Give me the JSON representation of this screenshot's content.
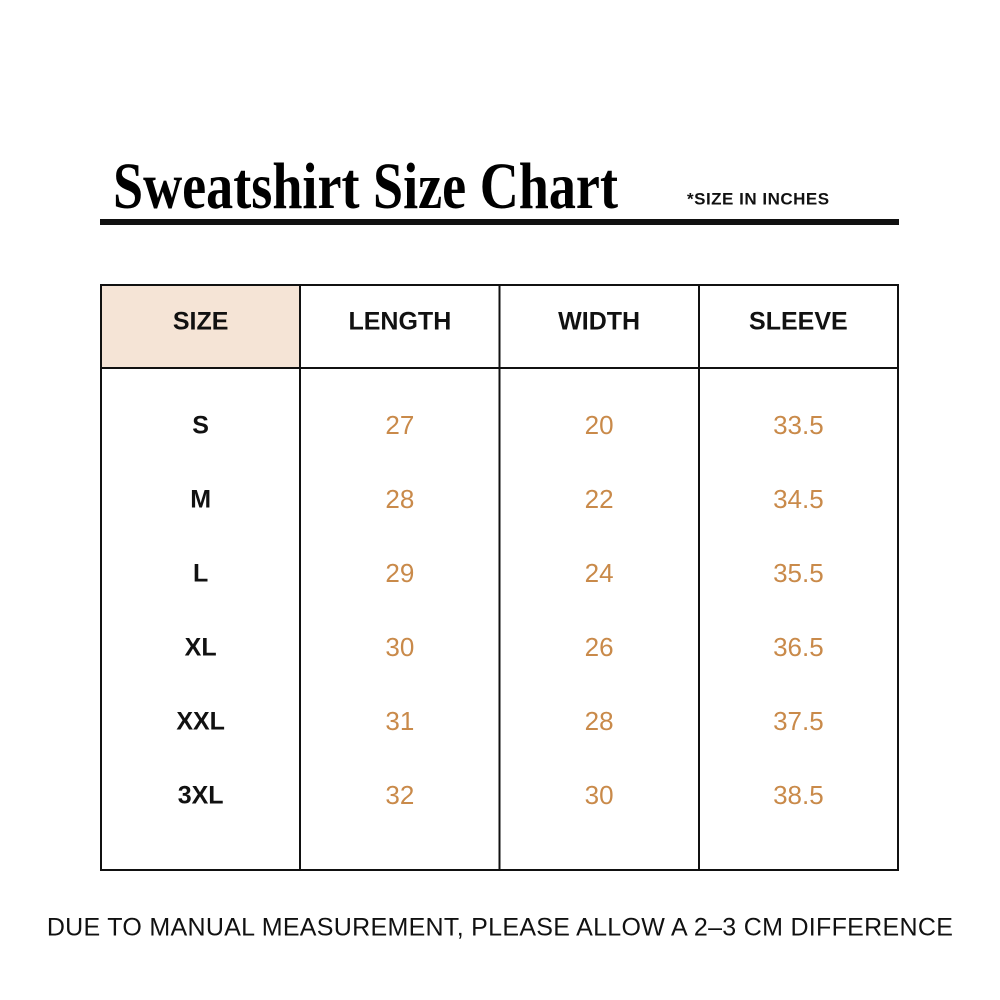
{
  "header": {
    "title": "Sweatshirt Size Chart",
    "note": "*SIZE IN INCHES"
  },
  "table": {
    "columns": [
      "SIZE",
      "LENGTH",
      "WIDTH",
      "SLEEVE"
    ],
    "rows": [
      [
        "S",
        27,
        20,
        33.5
      ],
      [
        "M",
        28,
        22,
        34.5
      ],
      [
        "L",
        29,
        24,
        35.5
      ],
      [
        "XL",
        30,
        26,
        36.5
      ],
      [
        "XXL",
        31,
        28,
        37.5
      ],
      [
        "3XL",
        32,
        30,
        38.5
      ]
    ]
  },
  "footer": "DUE TO MANUAL MEASUREMENT, PLEASE ALLOW A 2–3 CM DIFFERENCE"
}
